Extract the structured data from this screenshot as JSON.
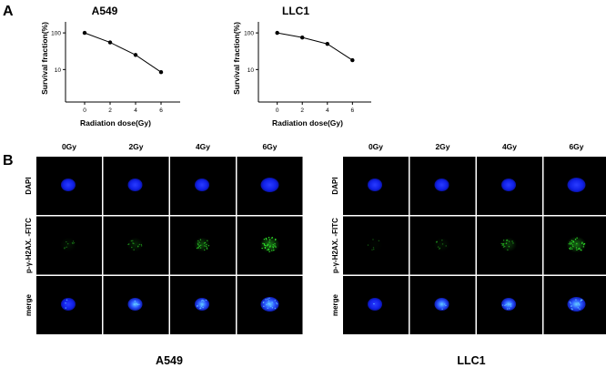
{
  "panel_labels": {
    "a": "A",
    "b": "B"
  },
  "chart_data": [
    {
      "type": "line",
      "title": "A549",
      "xlabel": "Radiation dose(Gy)",
      "ylabel": "Survival fraction(%)",
      "yscale": "log",
      "x": [
        0,
        2,
        4,
        6
      ],
      "xticks": [
        "0",
        "2",
        "4",
        "6"
      ],
      "yticks": [
        "100",
        "10"
      ],
      "xlim": [
        -1.5,
        7.5
      ],
      "ylim": [
        1.3,
        200
      ],
      "series": [
        {
          "values": [
            100,
            55,
            25,
            8.5
          ]
        }
      ],
      "grid": false
    },
    {
      "type": "line",
      "title": "LLC1",
      "xlabel": "Radiation dose(Gy)",
      "ylabel": "Survival fraction(%)",
      "yscale": "log",
      "x": [
        0,
        2,
        4,
        6
      ],
      "xticks": [
        "0",
        "2",
        "4",
        "6"
      ],
      "yticks": [
        "100",
        "10"
      ],
      "xlim": [
        -1.5,
        7.5
      ],
      "ylim": [
        1.3,
        200
      ],
      "series": [
        {
          "values": [
            100,
            75,
            50,
            18
          ]
        }
      ],
      "grid": false
    }
  ],
  "micrographs": {
    "column_labels": [
      "0Gy",
      "2Gy",
      "4Gy",
      "6Gy"
    ],
    "row_labels": [
      "DAPI",
      "p-γ-H2AX. -FITC",
      "merge"
    ],
    "colors": {
      "background": "#000000",
      "nucleus": "#1a2cff",
      "foci": "#2fe02a",
      "merge_highlight": "#66ccff"
    },
    "groups": [
      {
        "label": "A549",
        "green_intensity": [
          0.15,
          0.3,
          0.6,
          1.0
        ]
      },
      {
        "label": "LLC1",
        "green_intensity": [
          0.05,
          0.15,
          0.45,
          0.9
        ]
      }
    ]
  }
}
